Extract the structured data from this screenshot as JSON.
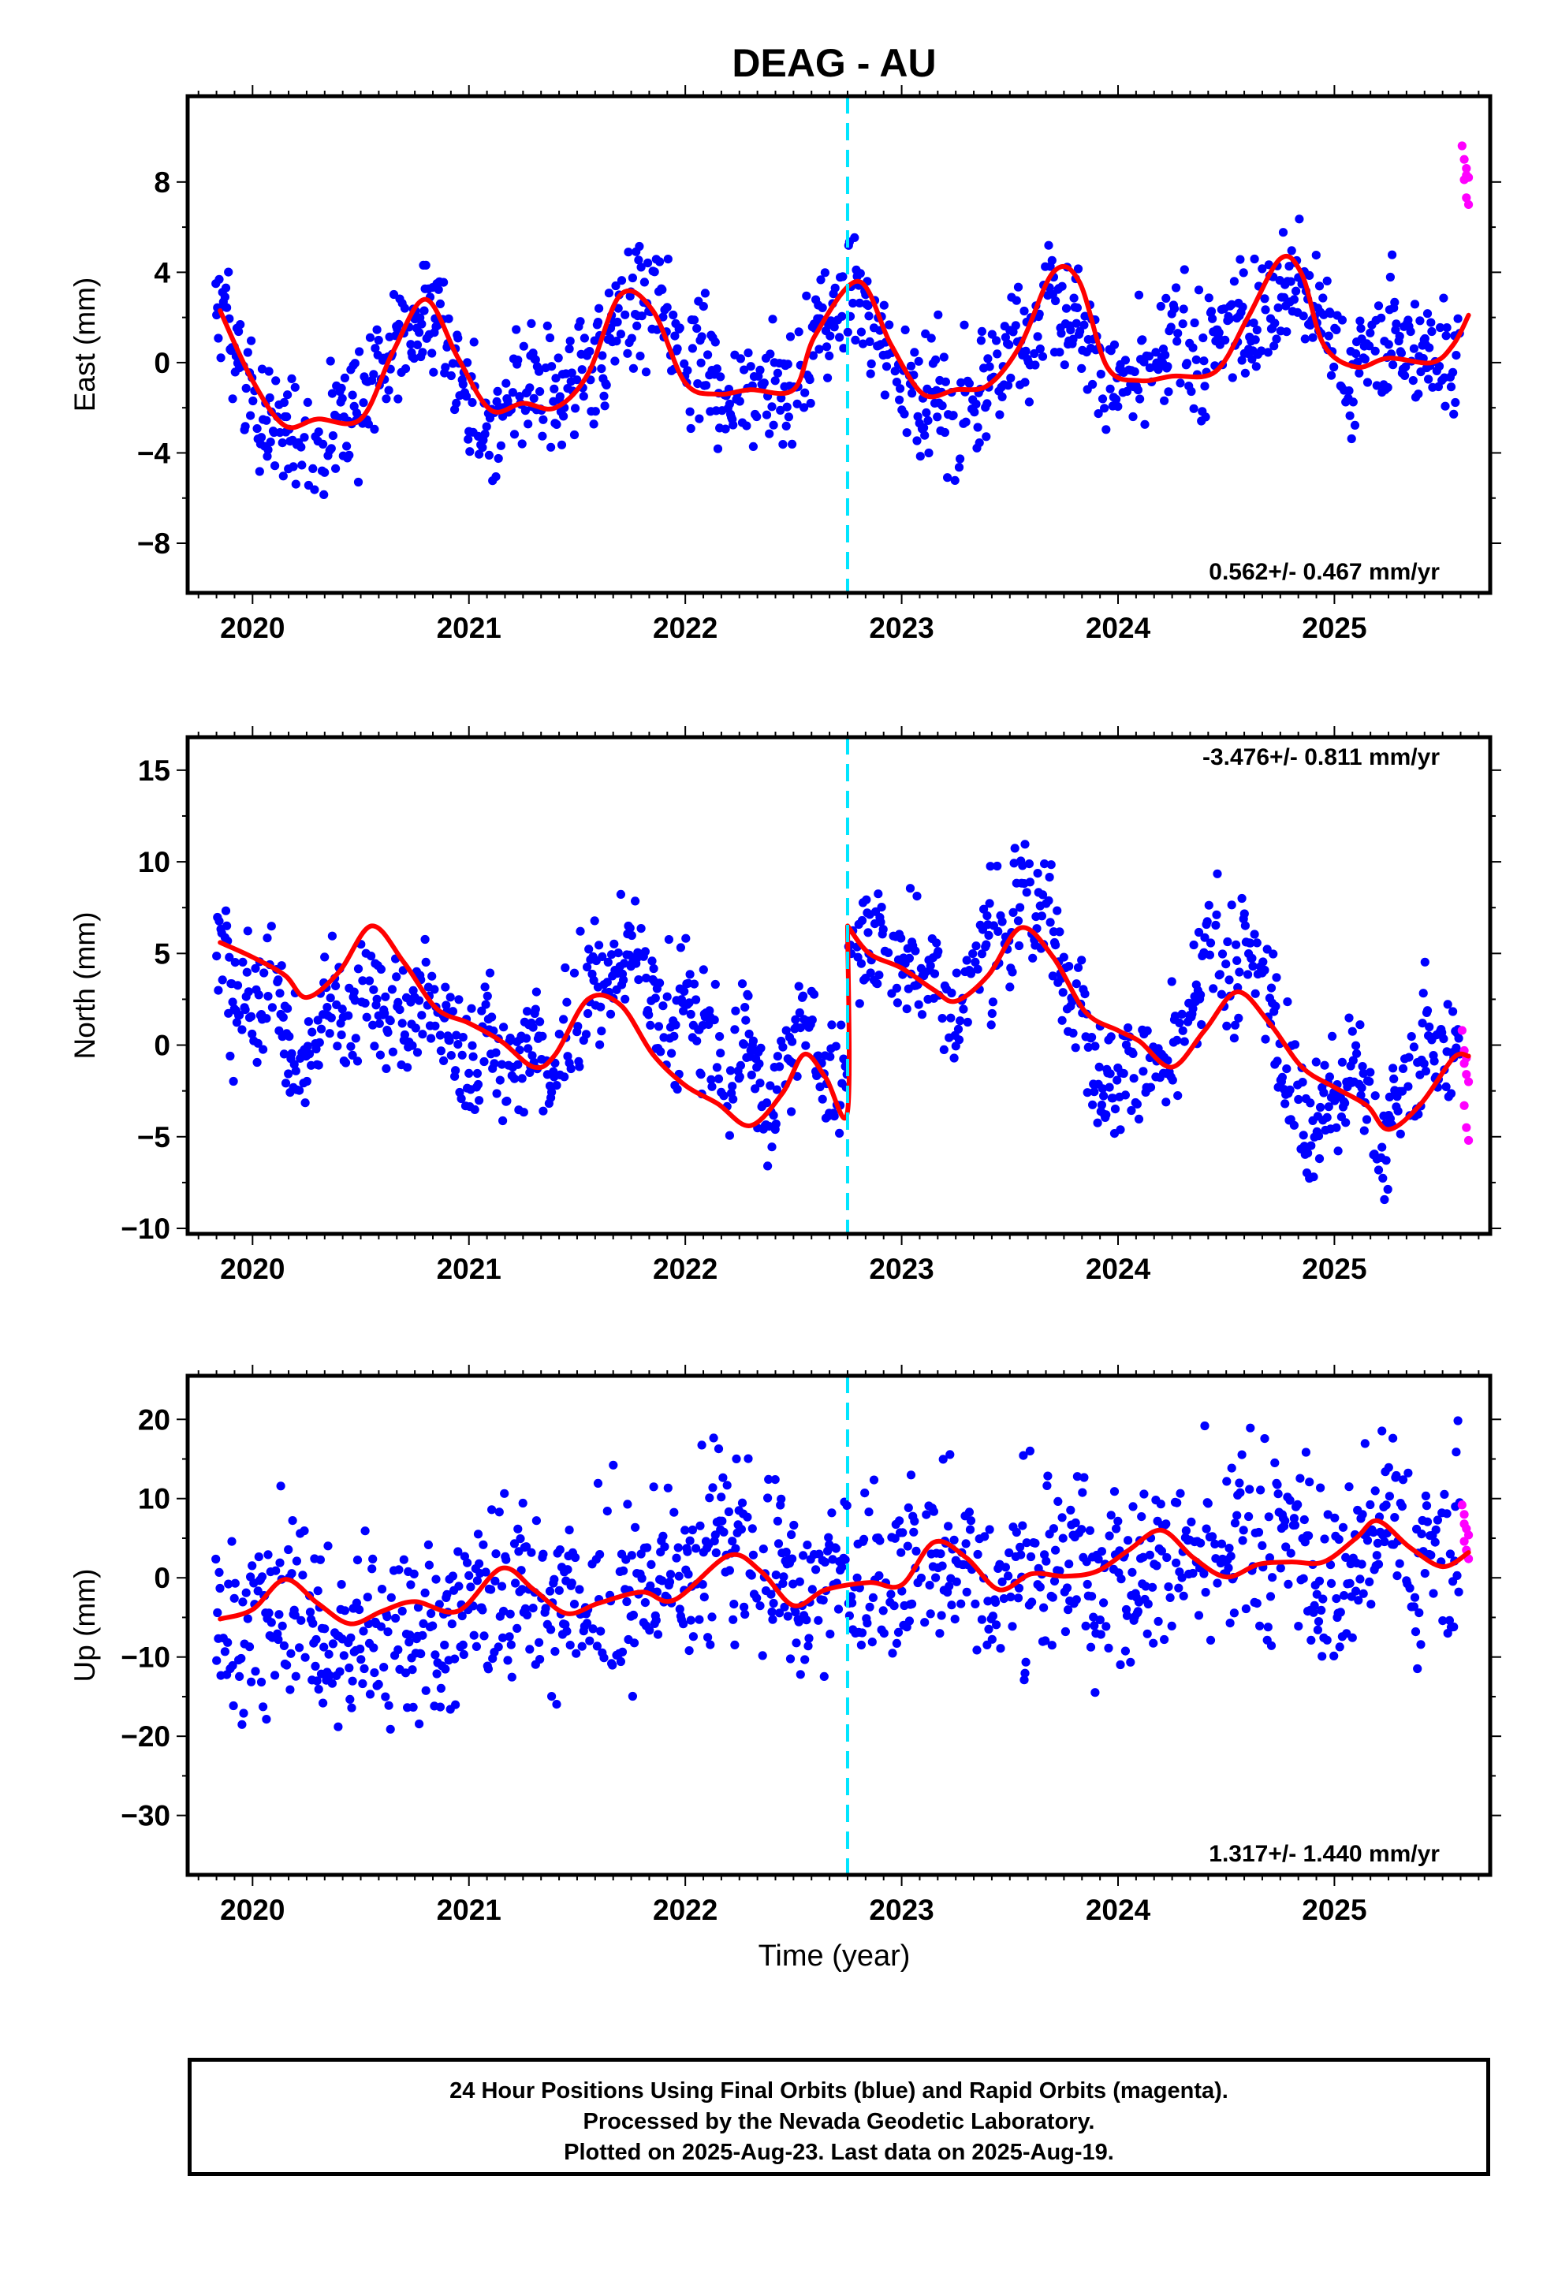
{
  "title": "DEAG - AU",
  "xlabel": "Time (year)",
  "x_ticks": [
    "2020",
    "2021",
    "2022",
    "2023",
    "2024",
    "2025"
  ],
  "colors": {
    "final_points": "#0000ff",
    "rapid_points": "#ff00ff",
    "model_line": "#ff0000",
    "event_line": "#00e5ff"
  },
  "footer": {
    "line1": "24 Hour Positions Using Final Orbits (blue) and Rapid Orbits (magenta).",
    "line2": "Processed by the Nevada Geodetic Laboratory.",
    "line3": "Plotted on 2025-Aug-23. Last data on 2025-Aug-19."
  },
  "chart_data": [
    {
      "type": "scatter",
      "panel": "east",
      "ylabel": "East (mm)",
      "y_ticks": [
        "8",
        "4",
        "0",
        "−4",
        "−8"
      ],
      "y_tick_values": [
        8,
        4,
        0,
        -4,
        -8
      ],
      "ylim": [
        -10.2,
        11.8
      ],
      "xlim": [
        2019.7,
        2025.72
      ],
      "rate_label": "0.562+/- 0.467 mm/yr",
      "rate_position": "bottom-right",
      "event_x": 2022.75,
      "model_x": [
        2019.85,
        2020.0,
        2020.15,
        2020.3,
        2020.5,
        2020.65,
        2020.8,
        2020.95,
        2021.1,
        2021.25,
        2021.4,
        2021.55,
        2021.7,
        2021.85,
        2022.0,
        2022.15,
        2022.3,
        2022.5,
        2022.6,
        2022.8,
        2022.95,
        2023.1,
        2023.25,
        2023.4,
        2023.55,
        2023.7,
        2023.82,
        2023.95,
        2024.1,
        2024.25,
        2024.45,
        2024.6,
        2024.75,
        2024.85,
        2024.95,
        2025.1,
        2025.25,
        2025.45,
        2025.55,
        2025.62
      ],
      "model_y": [
        2.3,
        -0.8,
        -2.8,
        -2.5,
        -2.5,
        0.5,
        2.8,
        0.2,
        -2.1,
        -1.8,
        -2.0,
        -0.5,
        3.0,
        2.3,
        -0.9,
        -1.4,
        -1.2,
        -1.2,
        1.2,
        3.6,
        0.8,
        -1.4,
        -1.2,
        -1.0,
        0.8,
        4.0,
        3.6,
        -0.2,
        -0.8,
        -0.6,
        -0.4,
        2.0,
        4.6,
        3.9,
        0.8,
        -0.2,
        0.2,
        0.0,
        0.8,
        2.1
      ],
      "rapid_x": [
        2025.59,
        2025.6,
        2025.61,
        2025.62,
        2025.6,
        2025.61,
        2025.62,
        2025.61
      ],
      "rapid_y": [
        9.6,
        9.0,
        8.6,
        8.2,
        8.1,
        7.3,
        7.0,
        8.3
      ]
    },
    {
      "type": "scatter",
      "panel": "north",
      "ylabel": "North (mm)",
      "y_ticks": [
        "15",
        "10",
        "5",
        "0",
        "−5",
        "−10"
      ],
      "y_tick_values": [
        15,
        10,
        5,
        0,
        -5,
        -10
      ],
      "ylim": [
        -10.3,
        16.8
      ],
      "xlim": [
        2019.7,
        2025.72
      ],
      "rate_label": "-3.476+/- 0.811 mm/yr",
      "rate_position": "top-right",
      "event_x": 2022.75,
      "model_x": [
        2019.85,
        2020.0,
        2020.15,
        2020.25,
        2020.4,
        2020.55,
        2020.7,
        2020.85,
        2021.0,
        2021.15,
        2021.3,
        2021.4,
        2021.55,
        2021.7,
        2021.85,
        2022.0,
        2022.15,
        2022.3,
        2022.45,
        2022.55,
        2022.65,
        2022.75,
        2022.75,
        2022.85,
        2023.0,
        2023.15,
        2023.25,
        2023.4,
        2023.55,
        2023.7,
        2023.85,
        2024.0,
        2024.1,
        2024.25,
        2024.4,
        2024.55,
        2024.7,
        2024.85,
        2025.0,
        2025.15,
        2025.25,
        2025.4,
        2025.55,
        2025.62
      ],
      "model_y": [
        5.6,
        4.8,
        3.8,
        2.6,
        4.0,
        6.5,
        4.5,
        2.0,
        1.2,
        0.2,
        -1.2,
        -0.5,
        2.5,
        2.2,
        -0.5,
        -2.2,
        -3.2,
        -4.4,
        -2.6,
        -0.5,
        -1.8,
        -3.6,
        6.5,
        5.0,
        4.2,
        3.0,
        2.4,
        3.8,
        6.4,
        4.8,
        1.8,
        0.8,
        0.2,
        -1.2,
        0.8,
        2.9,
        1.2,
        -1.2,
        -2.3,
        -3.3,
        -4.6,
        -3.2,
        -0.7,
        -0.6
      ],
      "rapid_x": [
        2025.59,
        2025.6,
        2025.61,
        2025.6,
        2025.61,
        2025.62,
        2025.6,
        2025.61,
        2025.62
      ],
      "rapid_y": [
        0.8,
        -0.3,
        -0.7,
        -1.0,
        -1.6,
        -2.0,
        -3.3,
        -4.5,
        -5.2
      ]
    },
    {
      "type": "scatter",
      "panel": "up",
      "ylabel": "Up (mm)",
      "y_ticks": [
        "20",
        "10",
        "0",
        "−10",
        "−20",
        "−30"
      ],
      "y_tick_values": [
        20,
        10,
        0,
        -10,
        -20,
        -30
      ],
      "ylim": [
        -37.5,
        25.5
      ],
      "xlim": [
        2019.7,
        2025.72
      ],
      "rate_label": "1.317+/- 1.440 mm/yr",
      "rate_position": "bottom-right",
      "event_x": 2022.75,
      "model_x": [
        2019.85,
        2020.0,
        2020.15,
        2020.3,
        2020.45,
        2020.6,
        2020.75,
        2020.95,
        2021.15,
        2021.3,
        2021.45,
        2021.6,
        2021.8,
        2021.95,
        2022.2,
        2022.35,
        2022.5,
        2022.65,
        2022.85,
        2023.0,
        2023.15,
        2023.3,
        2023.45,
        2023.6,
        2023.75,
        2023.9,
        2024.05,
        2024.2,
        2024.35,
        2024.5,
        2024.65,
        2024.8,
        2024.95,
        2025.1,
        2025.2,
        2025.35,
        2025.5,
        2025.62
      ],
      "model_y": [
        -5.2,
        -4.0,
        -0.2,
        -3.2,
        -5.8,
        -4.2,
        -3.0,
        -4.2,
        1.2,
        -1.5,
        -4.5,
        -3.2,
        -1.8,
        -2.8,
        2.8,
        0.8,
        -3.5,
        -1.5,
        -0.6,
        -0.9,
        4.5,
        2.5,
        -1.5,
        0.5,
        0.2,
        0.8,
        3.5,
        6.0,
        2.5,
        0.1,
        1.7,
        2.0,
        2.0,
        5.0,
        7.2,
        3.8,
        1.4,
        3.2
      ],
      "rapid_x": [
        2025.59,
        2025.6,
        2025.61,
        2025.62,
        2025.6,
        2025.61,
        2025.62,
        2025.6
      ],
      "rapid_y": [
        9.2,
        8.0,
        6.2,
        5.4,
        4.6,
        3.5,
        2.4,
        6.8
      ]
    }
  ]
}
